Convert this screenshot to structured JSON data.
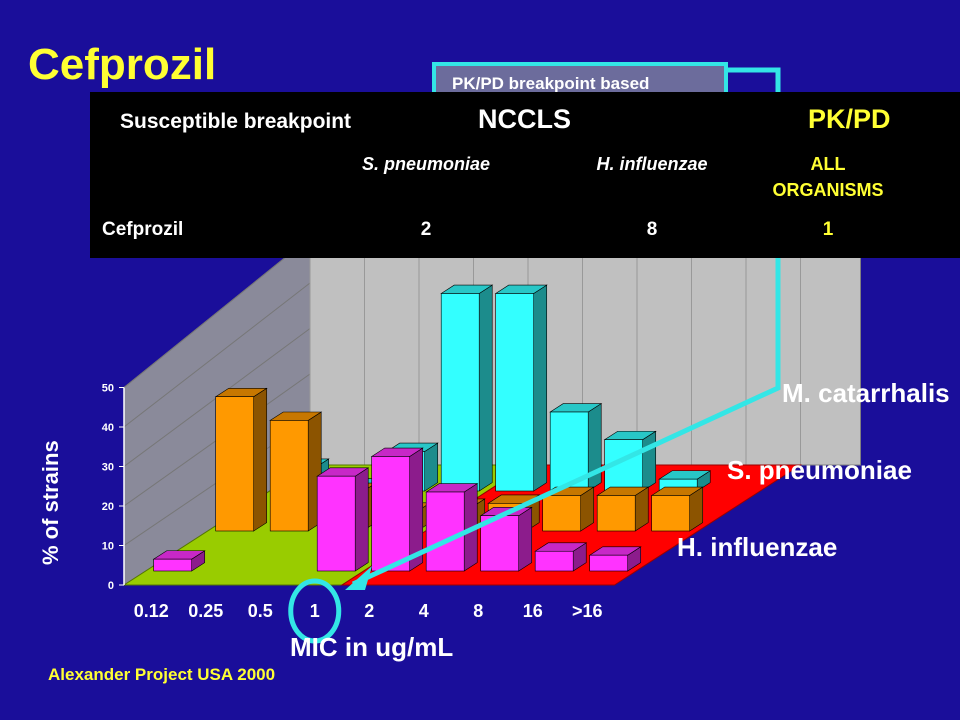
{
  "slide": {
    "title": "Cefprozil",
    "callout_text": "PK/PD breakpoint based",
    "footer": "Alexander Project USA 2000"
  },
  "breakpoint_table": {
    "header_left": "Susceptible breakpoint",
    "header_nccls": "NCCLS",
    "header_pkpd": "PK/PD",
    "col_spn": "S. pneumoniae",
    "col_hi": "H. influenzae",
    "col_all_1": "ALL",
    "col_all_2": "ORGANISMS",
    "row_label": "Cefprozil",
    "val_spn": "2",
    "val_hi": "8",
    "val_all": "1"
  },
  "colors": {
    "background": "#1a0e9a",
    "title": "#ffff33",
    "highlight": "#33e6e6",
    "floor_green": "#99cc00",
    "floor_red": "#ff0000",
    "wall": "#c0c0c0"
  },
  "chart_data": {
    "type": "bar",
    "title": "",
    "xlabel": "MIC in ug/mL",
    "ylabel": "% of strains",
    "categories": [
      "0.12",
      "0.25",
      "0.5",
      "1",
      "2",
      "4",
      "8",
      "16",
      ">16"
    ],
    "yticks": [
      "0",
      "10",
      "20",
      "30",
      "40",
      "50"
    ],
    "ylim": [
      0,
      50
    ],
    "highlight_category": "1",
    "series": [
      {
        "name": "H. influenzae",
        "color": "#ff33ff",
        "values": [
          3,
          null,
          null,
          24,
          29,
          20,
          14,
          5,
          4
        ]
      },
      {
        "name": "S. pneumoniae",
        "color": "#ff9900",
        "values": [
          34,
          28,
          10,
          5,
          6,
          7,
          9,
          9,
          9
        ]
      },
      {
        "name": "M. catarrhalis",
        "color": "#33ffff",
        "values": [
          6,
          1,
          10,
          50,
          50,
          20,
          13,
          3,
          null
        ]
      }
    ]
  }
}
